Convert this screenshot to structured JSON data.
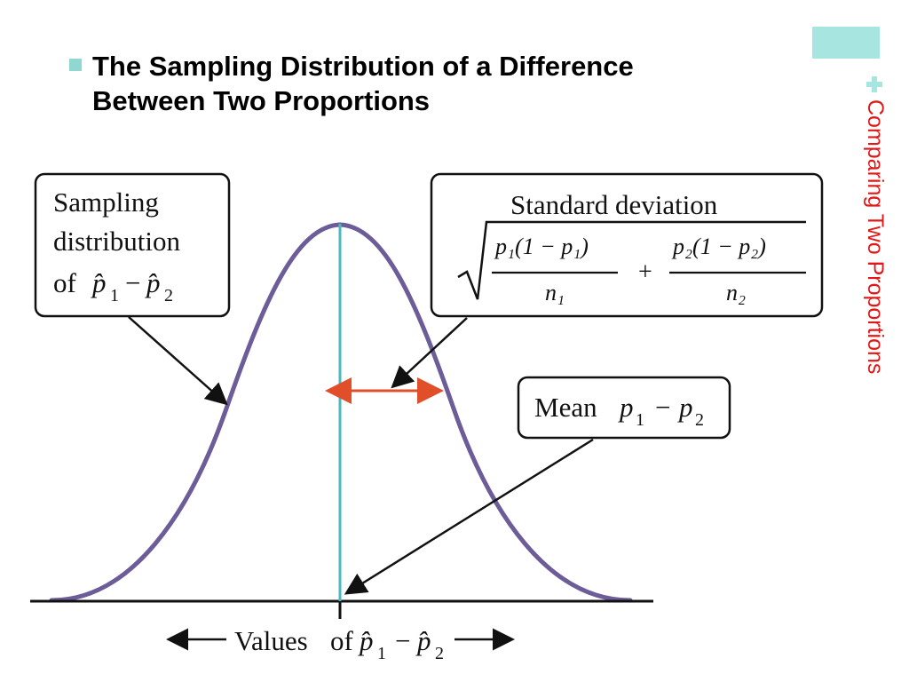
{
  "header": {
    "title": "The Sampling Distribution of a Difference\nBetween Two Proportions",
    "section_label": "Comparing Two Proportions"
  },
  "colors": {
    "bullet": "#8fd8d2",
    "accent": "#a7e5e1",
    "section_label": "#e01818",
    "curve": "#6c5c98",
    "mean_line": "#48b9bf",
    "sd_arrow": "#e04e2a",
    "axis": "#111111"
  },
  "icons": {
    "title_bullet": "square-bullet-icon",
    "plus": "plus-icon"
  },
  "diagram": {
    "sampling_box": {
      "line1": "Sampling",
      "line2": "distribution",
      "line3_prefix": "of",
      "p1_symbol": "p̂",
      "p1_sub": "1",
      "minus": "−",
      "p2_symbol": "p̂",
      "p2_sub": "2"
    },
    "stddev_box": {
      "heading": "Standard deviation",
      "numerator1": "p₁(1 − p₁)",
      "denominator1": "n₁",
      "plus": "+",
      "numerator2": "p₂(1 − p₂)",
      "denominator2": "n₂"
    },
    "mean_box": {
      "prefix": "Mean",
      "p1": "p",
      "p1_sub": "1",
      "minus": "−",
      "p2": "p",
      "p2_sub": "2"
    },
    "axis_label": {
      "prefix": "Values",
      "of": "of",
      "p1_symbol": "p̂",
      "p1_sub": "1",
      "minus": "−",
      "p2_symbol": "p̂",
      "p2_sub": "2"
    }
  }
}
